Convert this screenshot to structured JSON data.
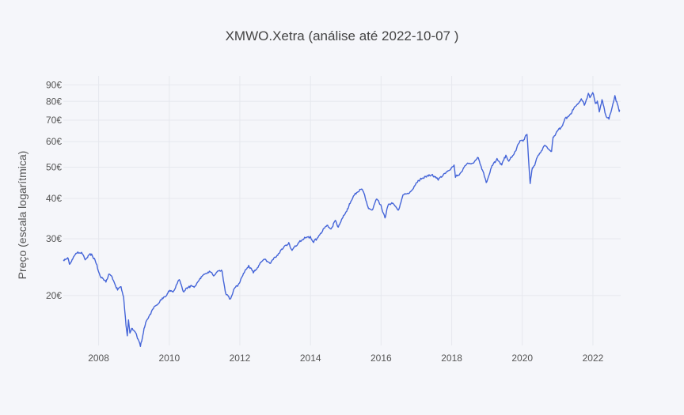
{
  "chart_data": {
    "type": "line",
    "title": "XMWO.Xetra (análise até 2022-10-07 )",
    "xlabel": "",
    "ylabel": "Preço (escala logarítmica)",
    "y_scale": "log",
    "ylim": [
      14,
      96
    ],
    "xlim": [
      "2007-01-01",
      "2022-10-15"
    ],
    "grid": true,
    "line_color": "#4565d8",
    "background_color": "#f5f6fa",
    "x_ticks": [
      "2008",
      "2010",
      "2012",
      "2014",
      "2016",
      "2018",
      "2020",
      "2022"
    ],
    "y_ticks": [
      {
        "value": 20,
        "label": "20€"
      },
      {
        "value": 30,
        "label": "30€"
      },
      {
        "value": 40,
        "label": "40€"
      },
      {
        "value": 50,
        "label": "50€"
      },
      {
        "value": 60,
        "label": "60€"
      },
      {
        "value": 70,
        "label": "70€"
      },
      {
        "value": 80,
        "label": "80€"
      },
      {
        "value": 90,
        "label": "90€"
      }
    ],
    "series": [
      {
        "x": [
          "2007-01-02",
          "2007-02-15",
          "2007-03-05",
          "2007-04-15",
          "2007-06-01",
          "2007-07-15",
          "2007-08-15",
          "2007-09-15",
          "2007-10-20",
          "2007-12-01",
          "2008-01-22",
          "2008-03-17",
          "2008-04-15",
          "2008-05-20",
          "2008-07-15",
          "2008-08-20",
          "2008-09-15",
          "2008-10-10",
          "2008-10-24",
          "2008-11-05",
          "2008-11-20",
          "2008-12-15",
          "2009-01-06",
          "2009-01-25",
          "2009-03-09",
          "2009-04-15",
          "2009-05-15",
          "2009-06-30",
          "2009-08-15",
          "2009-10-15",
          "2009-11-15",
          "2009-12-31",
          "2010-02-08",
          "2010-04-15",
          "2010-05-25",
          "2010-07-05",
          "2010-08-15",
          "2010-09-15",
          "2010-11-15",
          "2011-01-15",
          "2011-02-20",
          "2011-04-05",
          "2011-05-15",
          "2011-07-01",
          "2011-08-10",
          "2011-09-22",
          "2011-11-05",
          "2011-12-15",
          "2012-02-15",
          "2012-04-01",
          "2012-05-20",
          "2012-07-15",
          "2012-09-15",
          "2012-11-15",
          "2012-12-31",
          "2013-03-15",
          "2013-05-21",
          "2013-06-24",
          "2013-09-15",
          "2013-11-15",
          "2013-12-31",
          "2014-02-03",
          "2014-04-15",
          "2014-06-15",
          "2014-08-07",
          "2014-09-15",
          "2014-10-16",
          "2014-12-15",
          "2015-02-15",
          "2015-04-10",
          "2015-06-15",
          "2015-07-15",
          "2015-08-24",
          "2015-09-29",
          "2015-11-15",
          "2015-12-31",
          "2016-01-20",
          "2016-02-11",
          "2016-03-15",
          "2016-04-20",
          "2016-06-27",
          "2016-08-15",
          "2016-10-15",
          "2016-12-15",
          "2017-02-15",
          "2017-04-15",
          "2017-06-15",
          "2017-08-15",
          "2017-10-15",
          "2017-12-15",
          "2018-01-26",
          "2018-02-09",
          "2018-04-15",
          "2018-06-15",
          "2018-08-15",
          "2018-10-03",
          "2018-11-15",
          "2018-12-24",
          "2019-02-15",
          "2019-04-15",
          "2019-06-03",
          "2019-07-15",
          "2019-08-15",
          "2019-10-15",
          "2019-12-15",
          "2020-01-15",
          "2020-02-19",
          "2020-03-23",
          "2020-04-15",
          "2020-05-15",
          "2020-06-15",
          "2020-08-15",
          "2020-09-24",
          "2020-10-30",
          "2020-11-15",
          "2020-12-31",
          "2021-02-15",
          "2021-03-15",
          "2021-05-15",
          "2021-07-15",
          "2021-09-03",
          "2021-10-04",
          "2021-11-15",
          "2021-12-01",
          "2021-12-30",
          "2022-01-27",
          "2022-02-15",
          "2022-03-08",
          "2022-04-05",
          "2022-05-12",
          "2022-06-16",
          "2022-08-16",
          "2022-09-30",
          "2022-10-07"
        ],
        "y": [
          25.8,
          26.2,
          25.0,
          26.3,
          27.3,
          27.0,
          25.8,
          26.6,
          26.9,
          25.4,
          22.8,
          22.0,
          23.3,
          22.8,
          20.8,
          21.3,
          19.8,
          16.2,
          15.0,
          16.8,
          15.3,
          15.8,
          15.5,
          15.2,
          13.9,
          15.8,
          16.8,
          17.8,
          18.6,
          19.4,
          19.8,
          20.6,
          20.5,
          22.4,
          20.6,
          21.0,
          21.5,
          21.2,
          22.6,
          23.4,
          23.8,
          23.0,
          23.8,
          23.8,
          20.2,
          19.5,
          21.0,
          21.6,
          23.5,
          24.8,
          23.5,
          24.8,
          25.9,
          25.2,
          26.3,
          27.8,
          29.2,
          27.6,
          29.6,
          30.2,
          30.5,
          29.2,
          31.2,
          32.8,
          32.4,
          34.2,
          32.6,
          35.5,
          38.6,
          41.5,
          42.8,
          41.0,
          37.2,
          36.8,
          39.8,
          38.2,
          36.2,
          34.8,
          38.2,
          38.8,
          36.8,
          41.0,
          41.5,
          43.8,
          46.2,
          46.6,
          47.5,
          45.6,
          47.8,
          49.0,
          50.8,
          46.5,
          48.5,
          51.5,
          51.5,
          53.5,
          49.0,
          44.8,
          49.8,
          53.2,
          50.8,
          54.5,
          52.2,
          55.8,
          60.5,
          60.8,
          63.2,
          44.5,
          49.8,
          51.5,
          54.5,
          58.2,
          57.0,
          56.0,
          62.0,
          64.8,
          67.0,
          70.5,
          73.2,
          77.8,
          81.5,
          77.8,
          84.8,
          82.2,
          85.2,
          78.8,
          80.2,
          74.2,
          81.0,
          72.8,
          70.5,
          83.4,
          74.4,
          75.3
        ]
      }
    ]
  }
}
